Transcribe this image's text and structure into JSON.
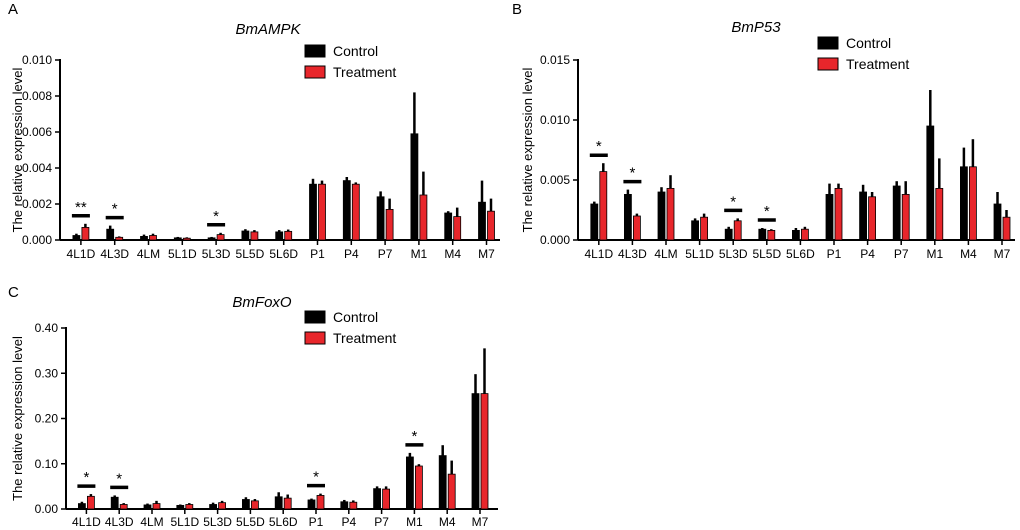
{
  "colors": {
    "control": "#000000",
    "treatment": "#e8262b",
    "axis": "#000000"
  },
  "legend": {
    "control": "Control",
    "treatment": "Treatment"
  },
  "chart_data": [
    {
      "panel": "A",
      "type": "bar",
      "title": "BmAMPK",
      "ylabel": "The relative expression level",
      "ylim": [
        0,
        0.01
      ],
      "yticks": [
        "0.000",
        "0.002",
        "0.004",
        "0.006",
        "0.008",
        "0.010"
      ],
      "categories": [
        "4L1D",
        "4L3D",
        "4LM",
        "5L1D",
        "5L3D",
        "5L5D",
        "5L6D",
        "P1",
        "P4",
        "P7",
        "M1",
        "M4",
        "M7"
      ],
      "series": [
        {
          "name": "Control",
          "values": [
            0.00025,
            0.0006,
            0.0002,
            0.00012,
            0.00012,
            0.0005,
            0.00045,
            0.0031,
            0.0033,
            0.0024,
            0.0059,
            0.0015,
            0.0021
          ],
          "errors": [
            0.0001,
            0.0002,
            0.0001,
            5e-05,
            5e-05,
            0.0001,
            0.0001,
            0.0003,
            0.0002,
            0.0003,
            0.0023,
            0.0001,
            0.0012
          ]
        },
        {
          "name": "Treatment",
          "values": [
            0.0007,
            0.00015,
            0.00025,
            0.0001,
            0.0003,
            0.00045,
            0.00048,
            0.0031,
            0.0031,
            0.0017,
            0.0025,
            0.0013,
            0.0016
          ],
          "errors": [
            0.0002,
            5e-05,
            0.0001,
            5e-05,
            0.0001,
            0.0001,
            0.0001,
            0.0002,
            0.0001,
            0.0006,
            0.0013,
            0.0005,
            0.0007
          ]
        }
      ],
      "annotations": [
        {
          "category": "4L1D",
          "label": "**"
        },
        {
          "category": "4L3D",
          "label": "*"
        },
        {
          "category": "5L3D",
          "label": "*"
        }
      ]
    },
    {
      "panel": "B",
      "type": "bar",
      "title": "BmP53",
      "ylabel": "The relative expression level",
      "ylim": [
        0,
        0.015
      ],
      "yticks": [
        "0.000",
        "0.005",
        "0.010",
        "0.015"
      ],
      "categories": [
        "4L1D",
        "4L3D",
        "4LM",
        "5L1D",
        "5L3D",
        "5L5D",
        "5L6D",
        "P1",
        "P4",
        "P7",
        "M1",
        "M4",
        "M7"
      ],
      "series": [
        {
          "name": "Control",
          "values": [
            0.003,
            0.0038,
            0.004,
            0.0016,
            0.0009,
            0.0009,
            0.0008,
            0.0038,
            0.004,
            0.0045,
            0.0095,
            0.0061,
            0.003
          ],
          "errors": [
            0.0002,
            0.0004,
            0.0004,
            0.0002,
            0.0002,
            0.0001,
            0.0002,
            0.0009,
            0.0006,
            0.0004,
            0.003,
            0.0016,
            0.001
          ]
        },
        {
          "name": "Treatment",
          "values": [
            0.0057,
            0.002,
            0.0043,
            0.0019,
            0.0016,
            0.0008,
            0.0009,
            0.0043,
            0.0036,
            0.0038,
            0.0043,
            0.0061,
            0.0019
          ],
          "errors": [
            0.0007,
            0.0002,
            0.0011,
            0.0003,
            0.0002,
            0.0001,
            0.0002,
            0.0004,
            0.0004,
            0.0011,
            0.0025,
            0.0023,
            0.0006
          ]
        }
      ],
      "annotations": [
        {
          "category": "4L1D",
          "label": "*"
        },
        {
          "category": "4L3D",
          "label": "*"
        },
        {
          "category": "5L3D",
          "label": "*"
        },
        {
          "category": "5L5D",
          "label": "*"
        }
      ]
    },
    {
      "panel": "C",
      "type": "bar",
      "title": "BmFoxO",
      "ylabel": "The relative expression level",
      "ylim": [
        0,
        0.4
      ],
      "yticks": [
        "0.00",
        "0.10",
        "0.20",
        "0.30",
        "0.40"
      ],
      "categories": [
        "4L1D",
        "4L3D",
        "4LM",
        "5L1D",
        "5L3D",
        "5L5D",
        "5L6D",
        "P1",
        "P4",
        "P7",
        "M1",
        "M4",
        "M7"
      ],
      "series": [
        {
          "name": "Control",
          "values": [
            0.012,
            0.026,
            0.009,
            0.008,
            0.01,
            0.021,
            0.027,
            0.02,
            0.016,
            0.045,
            0.115,
            0.118,
            0.255
          ],
          "errors": [
            0.004,
            0.004,
            0.003,
            0.002,
            0.004,
            0.005,
            0.01,
            0.003,
            0.004,
            0.005,
            0.009,
            0.023,
            0.043
          ]
        },
        {
          "name": "Treatment",
          "values": [
            0.028,
            0.01,
            0.012,
            0.01,
            0.014,
            0.018,
            0.024,
            0.03,
            0.015,
            0.044,
            0.095,
            0.077,
            0.255
          ],
          "errors": [
            0.005,
            0.003,
            0.006,
            0.003,
            0.004,
            0.004,
            0.008,
            0.004,
            0.004,
            0.006,
            0.004,
            0.03,
            0.1
          ]
        }
      ],
      "annotations": [
        {
          "category": "4L1D",
          "label": "*"
        },
        {
          "category": "4L3D",
          "label": "*"
        },
        {
          "category": "P1",
          "label": "*"
        },
        {
          "category": "M1",
          "label": "*"
        }
      ]
    }
  ]
}
